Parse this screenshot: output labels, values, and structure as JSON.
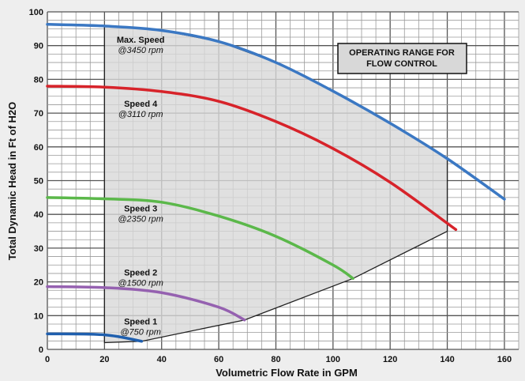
{
  "chart_data": {
    "type": "line",
    "xlabel": "Volumetric Flow Rate in GPM",
    "ylabel": "Total Dynamic Head in Ft of H2O",
    "xlim": [
      0,
      165
    ],
    "ylim": [
      0,
      100
    ],
    "x_ticks": [
      "0",
      "20",
      "40",
      "60",
      "80",
      "100",
      "120",
      "140",
      "160"
    ],
    "y_ticks": [
      "0",
      "10",
      "20",
      "30",
      "40",
      "50",
      "60",
      "70",
      "80",
      "90",
      "100"
    ],
    "grid": true,
    "annotation": [
      "OPERATING RANGE FOR",
      "FLOW CONTROL"
    ],
    "series": [
      {
        "name": "Max. Speed",
        "rpm": "@3450 rpm",
        "color": "#3b78c3",
        "points": [
          [
            0,
            96.3
          ],
          [
            20,
            95.8
          ],
          [
            40,
            94.5
          ],
          [
            60,
            91.2
          ],
          [
            80,
            85
          ],
          [
            100,
            76.5
          ],
          [
            120,
            67
          ],
          [
            140,
            56.5
          ],
          [
            160,
            44.5
          ]
        ]
      },
      {
        "name": "Speed 4",
        "rpm": "@3110 rpm",
        "color": "#d7232a",
        "points": [
          [
            0,
            78
          ],
          [
            20,
            77.7
          ],
          [
            40,
            76.4
          ],
          [
            60,
            73.5
          ],
          [
            80,
            67.5
          ],
          [
            100,
            59.5
          ],
          [
            120,
            49.5
          ],
          [
            143,
            35.5
          ]
        ]
      },
      {
        "name": "Speed 3",
        "rpm": "@2350 rpm",
        "color": "#5bb84a",
        "points": [
          [
            0,
            45
          ],
          [
            20,
            44.6
          ],
          [
            40,
            43.6
          ],
          [
            60,
            39.5
          ],
          [
            80,
            33.5
          ],
          [
            100,
            25
          ],
          [
            107,
            21
          ]
        ]
      },
      {
        "name": "Speed 2",
        "rpm": "@1500 rpm",
        "color": "#9561b0",
        "points": [
          [
            0,
            18.6
          ],
          [
            20,
            18.3
          ],
          [
            40,
            16.8
          ],
          [
            60,
            12.5
          ],
          [
            69,
            8.7
          ]
        ]
      },
      {
        "name": "Speed 1",
        "rpm": "@750 rpm",
        "color": "#1f5fae",
        "points": [
          [
            0,
            4.6
          ],
          [
            20,
            4.3
          ],
          [
            33,
            2.4
          ]
        ]
      }
    ],
    "operating_range": [
      [
        20,
        95.8
      ],
      [
        20,
        2
      ],
      [
        33,
        2.4
      ],
      [
        69,
        8.7
      ],
      [
        107,
        21
      ],
      [
        140,
        35
      ],
      [
        140,
        56.5
      ]
    ],
    "label_positions": [
      [
        31,
        89.5
      ],
      [
        31,
        70.5
      ],
      [
        31,
        39.5
      ],
      [
        31,
        20.5
      ],
      [
        31,
        6
      ]
    ]
  }
}
